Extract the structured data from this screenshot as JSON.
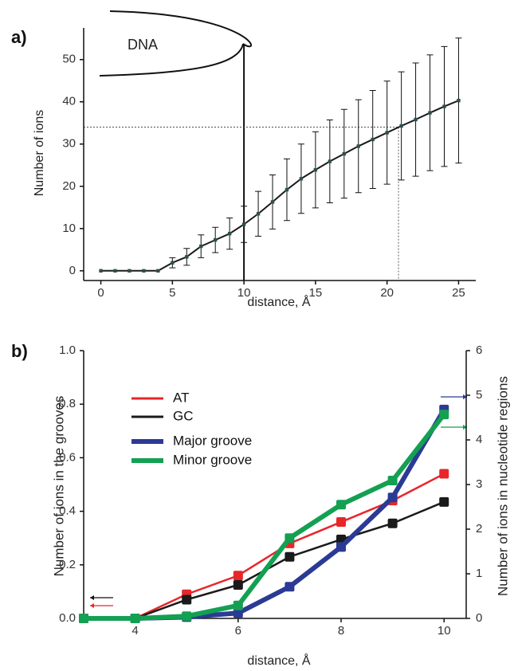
{
  "chart_data": [
    {
      "type": "line",
      "panel_label": "a)",
      "annotation": "DNA",
      "x_label": "distance, Å",
      "y_label": "Number of ions",
      "x": [
        0,
        1,
        2,
        3,
        4,
        5,
        6,
        7,
        8,
        9,
        10,
        11,
        12,
        13,
        14,
        15,
        16,
        17,
        18,
        19,
        20,
        21,
        22,
        23,
        24,
        25
      ],
      "values": [
        0,
        0,
        0,
        0,
        0,
        1.9,
        3.3,
        5.8,
        7.3,
        8.8,
        11,
        13.5,
        16.3,
        19.2,
        21.8,
        23.9,
        25.9,
        27.7,
        29.5,
        31.1,
        32.7,
        34.3,
        35.8,
        37.4,
        38.9,
        40.3
      ],
      "errors": [
        0,
        0,
        0,
        0,
        0,
        1.2,
        2,
        2.7,
        3,
        3.7,
        4.3,
        5.3,
        6.4,
        7.3,
        8.2,
        9,
        9.8,
        10.5,
        11,
        11.6,
        12.2,
        12.8,
        13.4,
        13.7,
        14.2,
        14.8
      ],
      "color": "#1a1a1a",
      "boundary_x": 10,
      "dashed_x": 20.8,
      "dashed_y": 34,
      "xlim": [
        -1.2,
        26.2
      ],
      "ylim": [
        -2.3,
        57.5
      ],
      "xticks": [
        0,
        5,
        10,
        15,
        20,
        25
      ],
      "yticks": [
        0,
        10,
        20,
        30,
        40,
        50
      ]
    },
    {
      "type": "line",
      "panel_label": "b)",
      "x_label": "distance, Å",
      "y_label": "Number of ions in the grooves",
      "y2_label": "Number of ions in nucleotide regions",
      "x": [
        3,
        4,
        5,
        6,
        7,
        8,
        9,
        10
      ],
      "series": [
        {
          "name": "AT",
          "color": "#e8262a",
          "values": [
            0,
            0,
            0.09,
            0.16,
            0.28,
            0.36,
            0.44,
            0.54
          ]
        },
        {
          "name": "GC",
          "color": "#1a1a1a",
          "values": [
            0,
            0,
            0.07,
            0.125,
            0.23,
            0.295,
            0.355,
            0.435
          ]
        },
        {
          "name": "Major groove",
          "color": "#2b3a94",
          "axis": "y2",
          "values": [
            0,
            0,
            0.03,
            0.12,
            0.71,
            1.6,
            2.71,
            4.68
          ]
        },
        {
          "name": "Minor groove",
          "color": "#13a052",
          "axis": "y2",
          "values": [
            0,
            0,
            0.05,
            0.29,
            1.8,
            2.55,
            3.09,
            4.57
          ]
        }
      ],
      "xlim": [
        3,
        10.43
      ],
      "ylim": [
        0,
        1
      ],
      "y2lim": [
        0,
        6
      ],
      "xticks": [
        4,
        6,
        8,
        10
      ],
      "yticks": [
        {
          "value": 0,
          "label": "0.0"
        },
        {
          "value": 0.2,
          "label": "0.2"
        },
        {
          "value": 0.4,
          "label": "0.4"
        },
        {
          "value": 0.6,
          "label": "0.6"
        },
        {
          "value": 0.8,
          "label": "0.8"
        },
        {
          "value": 1,
          "label": "1.0"
        }
      ],
      "y2ticks": [
        0,
        1,
        2,
        3,
        4,
        5,
        6
      ]
    }
  ]
}
